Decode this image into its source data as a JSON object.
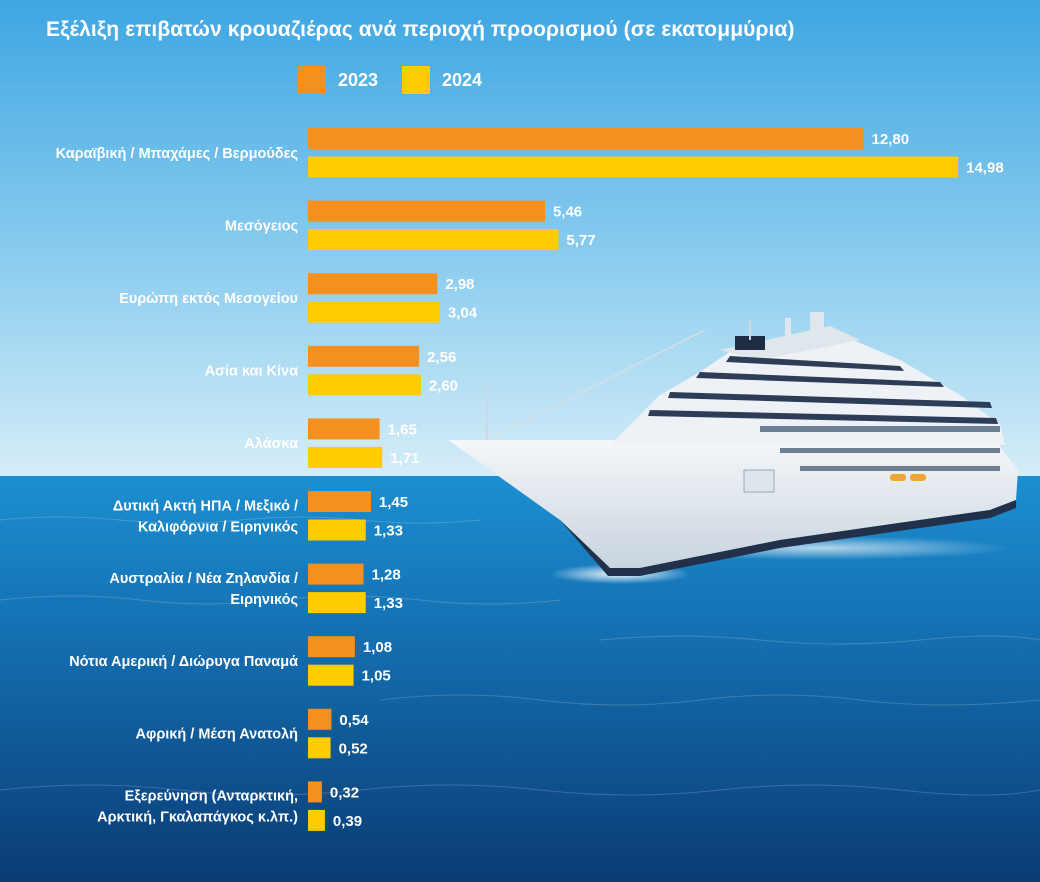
{
  "colors": {
    "series_2023": "#f39020",
    "series_2024": "#ffcc00",
    "sky_top": "#4fb2e6",
    "sky_bottom": "#d8eef8",
    "sea_top": "#1a86c8",
    "sea_bottom": "#0b3f7a",
    "text": "#ffffff"
  },
  "background": {
    "scene": "cruise ship sailing on blue sea under clear sky",
    "ship_icon": "cruise-ship-icon"
  },
  "chart_data": {
    "type": "bar",
    "orientation": "horizontal",
    "title": "Εξέλιξη επιβατών κρουαζιέρας ανά περιοχή προορισμού (σε εκατομμύρια)",
    "legend_position": "top-left",
    "grid": false,
    "xlim": [
      0,
      15
    ],
    "categories": [
      [
        "Καραϊβική / Μπαχάμες / Βερμούδες"
      ],
      [
        "Μεσόγειος"
      ],
      [
        "Ευρώπη εκτός Μεσογείου"
      ],
      [
        "Ασία και Κίνα"
      ],
      [
        "Αλάσκα"
      ],
      [
        "Δυτική Ακτή ΗΠΑ / Μεξικό /",
        "Καλιφόρνια / Ειρηνικός"
      ],
      [
        "Αυστραλία / Νέα Ζηλανδία /",
        "Ειρηνικός"
      ],
      [
        "Νότια Αμερική / Διώρυγα Παναμά"
      ],
      [
        "Αφρική / Μέση Ανατολή"
      ],
      [
        "Εξερεύνηση (Ανταρκτική,",
        "Αρκτική, Γκαλαπάγκος κ.λπ.)"
      ]
    ],
    "series": [
      {
        "name": "2023",
        "values": [
          12.8,
          5.46,
          2.98,
          2.56,
          1.65,
          1.45,
          1.28,
          1.08,
          0.54,
          0.32
        ],
        "labels": [
          "12,80",
          "5,46",
          "2,98",
          "2,56",
          "1,65",
          "1,45",
          "1,28",
          "1,08",
          "0,54",
          "0,32"
        ]
      },
      {
        "name": "2024",
        "values": [
          14.98,
          5.77,
          3.04,
          2.6,
          1.71,
          1.33,
          1.33,
          1.05,
          0.52,
          0.39
        ],
        "labels": [
          "14,98",
          "5,77",
          "3,04",
          "2,60",
          "1,71",
          "1,33",
          "1,33",
          "1,05",
          "0,52",
          "0,39"
        ]
      }
    ]
  }
}
